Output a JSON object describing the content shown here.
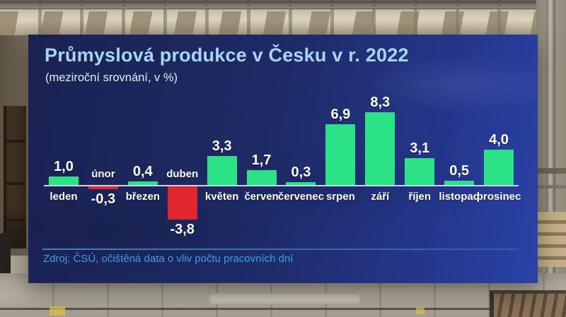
{
  "panel": {
    "title": "Průmyslová produkce v Česku v r. 2022",
    "subtitle": "(meziroční srovnání, v %)",
    "source": "Zdroj: ČSÚ, očištěná data o vliv počtu pracovních dní"
  },
  "chart_data": {
    "type": "bar",
    "title": "Průmyslová produkce v Česku v r. 2022",
    "subtitle": "(meziroční srovnání, v %)",
    "unit": "%",
    "comparison": "meziroční srovnání",
    "categories": [
      "leden",
      "únor",
      "březen",
      "duben",
      "květen",
      "červen",
      "červenec",
      "srpen",
      "září",
      "říjen",
      "listopad",
      "prosinec"
    ],
    "values": [
      1.0,
      -0.3,
      0.4,
      -3.8,
      3.3,
      1.7,
      0.3,
      6.9,
      8.3,
      3.1,
      0.5,
      4.0
    ],
    "value_labels": [
      "1,0",
      "-0,3",
      "0,4",
      "-3,8",
      "3,3",
      "1,7",
      "0,3",
      "6,9",
      "8,3",
      "3,1",
      "0,5",
      "4,0"
    ],
    "ylim": [
      -4.5,
      9
    ],
    "grid": false,
    "legend": null,
    "colors": {
      "positive": "#2be287",
      "negative": "#e22630",
      "axis": "#dae2ee"
    }
  },
  "theme": {
    "panel_gradient": [
      "#1a2252",
      "#2a42a6"
    ],
    "title_color": "#a7d6f3",
    "subtitle_color": "#e2f0fb",
    "source_color": "#38a0e8",
    "label_color": "#ffffff"
  }
}
